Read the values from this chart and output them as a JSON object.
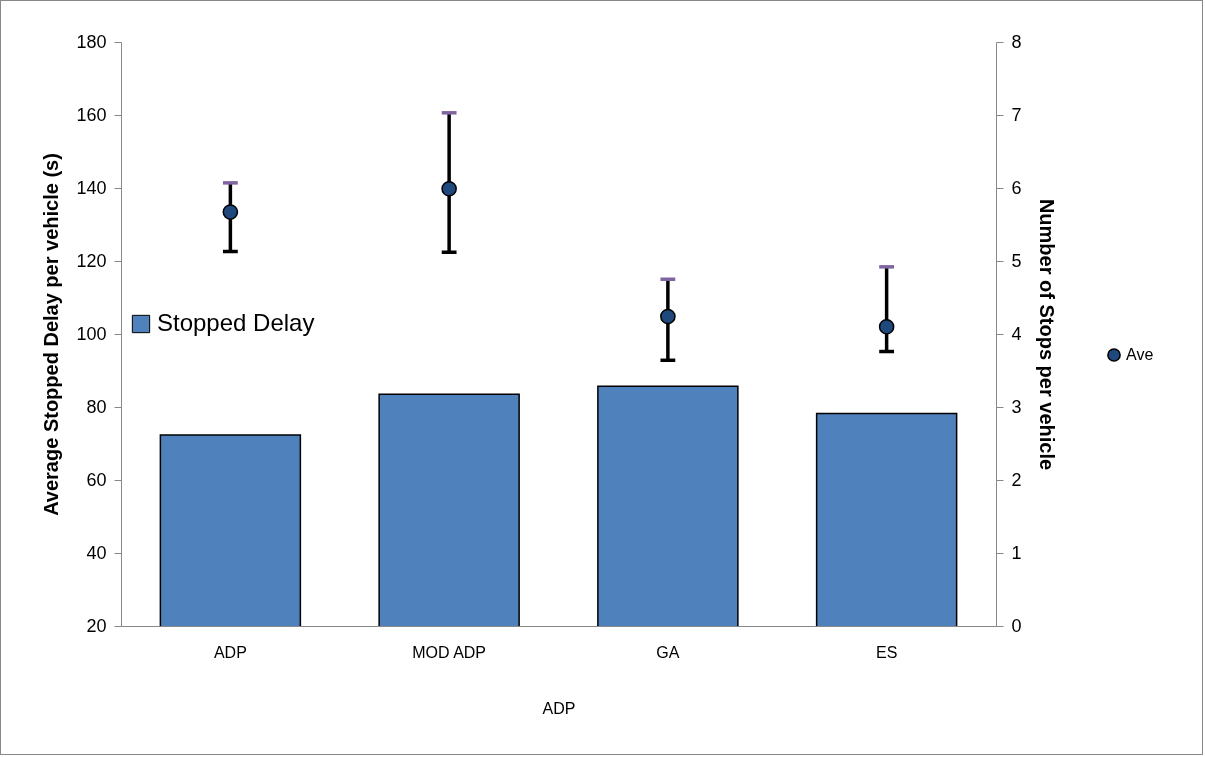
{
  "chart_data": {
    "type": "bar",
    "categories": [
      "ADP",
      "MOD ADP",
      "GA",
      "ES"
    ],
    "xlabel": "ADP",
    "ylabel": "Average Stopped Delay per vehicle (s)",
    "y2label": "Number of Stops per vehicle",
    "series": [
      {
        "name": "Stopped Delay",
        "type": "bar",
        "color": "#4f81bd",
        "values": [
          72.3,
          83.5,
          85.7,
          78.2
        ]
      },
      {
        "name": "Ave",
        "type": "scatter",
        "axis": "y2",
        "color": "#1f497d",
        "values": [
          5.67,
          5.99,
          4.24,
          4.1
        ],
        "errors": [
          [
            5.13,
            6.07
          ],
          [
            5.12,
            7.03
          ],
          [
            3.64,
            4.75
          ],
          [
            3.76,
            4.92
          ]
        ]
      }
    ],
    "ylim": [
      20,
      180
    ],
    "yticks": [
      20,
      40,
      60,
      80,
      100,
      120,
      140,
      160,
      180
    ],
    "y2lim": [
      0,
      8
    ],
    "y2ticks": [
      0,
      1,
      2,
      3,
      4,
      5,
      6,
      7,
      8
    ],
    "grid": false,
    "legend": "right",
    "marker": "circle"
  }
}
